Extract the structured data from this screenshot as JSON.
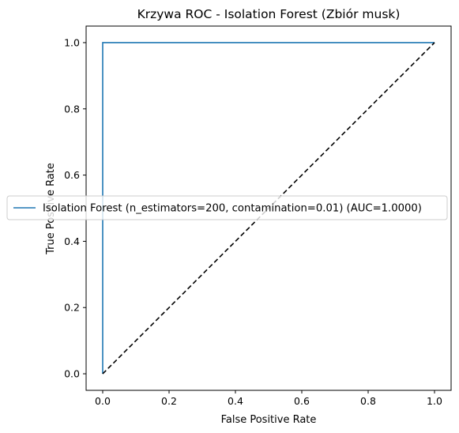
{
  "chart_data": {
    "type": "line",
    "title": "Krzywa ROC - Isolation Forest (Zbiór musk)",
    "xlabel": "False Positive Rate",
    "ylabel": "True Positive Rate",
    "xlim": [
      -0.05,
      1.05
    ],
    "ylim": [
      -0.05,
      1.05
    ],
    "xticks": [
      "0.0",
      "0.2",
      "0.4",
      "0.6",
      "0.8",
      "1.0"
    ],
    "yticks": [
      "0.0",
      "0.2",
      "0.4",
      "0.6",
      "0.8",
      "1.0"
    ],
    "grid": false,
    "legend_position": "center-left",
    "series": [
      {
        "name": "Isolation Forest (n_estimators=200, contamination=0.01) (AUC=1.0000)",
        "color": "#1f77b4",
        "style": "solid",
        "x": [
          0.0,
          0.0,
          1.0
        ],
        "y": [
          0.0,
          1.0,
          1.0
        ]
      },
      {
        "color": "#000000",
        "style": "dashed",
        "x": [
          0.0,
          1.0
        ],
        "y": [
          0.0,
          1.0
        ]
      }
    ]
  }
}
